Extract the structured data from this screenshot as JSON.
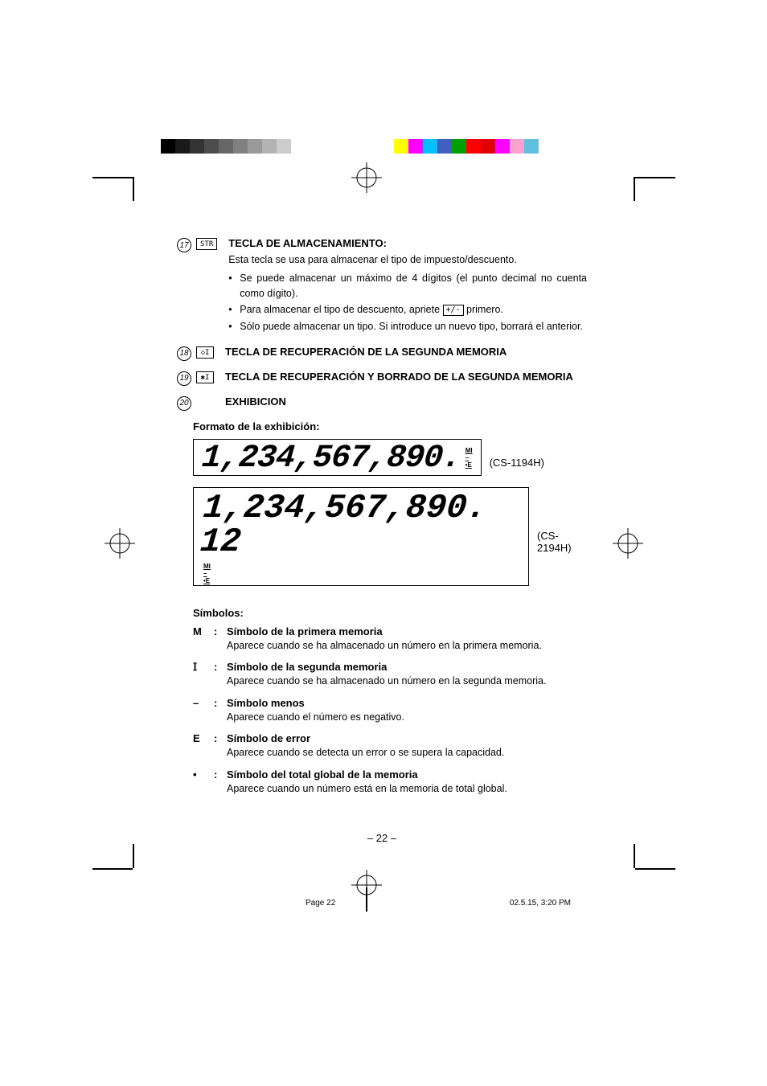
{
  "crop_colors_left": [
    "#000000",
    "#1a1a1a",
    "#333333",
    "#4d4d4d",
    "#666666",
    "#808080",
    "#999999",
    "#b3b3b3",
    "#cccccc",
    "#ffffff"
  ],
  "crop_colors_right": [
    "#ffff00",
    "#ff00ff",
    "#00c0ff",
    "#4060c0",
    "#00a000",
    "#ff0000",
    "#e00000",
    "#ff00ff",
    "#ffa0d0",
    "#60c0e0"
  ],
  "items": [
    {
      "num": "17",
      "key": "STR",
      "title": "TECLA DE ALMACENAMIENTO:",
      "desc": "Esta tecla se usa para almacenar el tipo de impuesto/descuento.",
      "bullets": [
        "Se puede almacenar un máximo de 4 dígitos (el punto decimal no cuenta como dígito).",
        "Para almacenar el tipo de descuento, apriete [+/-] primero.",
        "Sólo puede almacenar un tipo. Si introduce un nuevo tipo, borrará el anterior."
      ],
      "inline_key": "+/-"
    },
    {
      "num": "18",
      "key": "◇I",
      "title": "TECLA DE RECUPERACIÓN DE LA SEGUNDA MEMORIA"
    },
    {
      "num": "19",
      "key": "✱I",
      "title": "TECLA DE RECUPERACIÓN Y BORRADO DE LA SEGUNDA MEMORIA"
    },
    {
      "num": "20",
      "title": "EXHIBICION"
    }
  ],
  "display_format_label": "Formato de la exhibición:",
  "displays": [
    {
      "digits": "1,234,567,890.",
      "model": "(CS-1194H)"
    },
    {
      "digits": "1,234,567,890. 12",
      "model": "(CS-2194H)"
    }
  ],
  "display_indicators": [
    "MI",
    "–",
    "•E"
  ],
  "symbols_heading": "Símbolos:",
  "symbols": [
    {
      "key": "M",
      "title": "Símbolo de la primera memoria",
      "desc": "Aparece cuando se ha almacenado un número en la primera memoria."
    },
    {
      "key": "I_glyph",
      "key_label": "I",
      "title": "Símbolo de la segunda memoria",
      "desc": "Aparece cuando se ha almacenado un número en la segunda memoria."
    },
    {
      "key": "–",
      "title": "Símbolo menos",
      "desc": "Aparece cuando el número es negativo."
    },
    {
      "key": "E",
      "title": "Símbolo de error",
      "desc": "Aparece cuando se detecta un error o se supera la capacidad."
    },
    {
      "key": "•",
      "title": "Símbolo del total global de la memoria",
      "desc": "Aparece cuando un número está en la memoria de total global."
    }
  ],
  "page_number": "– 22 –",
  "footer_left": "Page 22",
  "footer_right": "02.5.15, 3:20 PM"
}
